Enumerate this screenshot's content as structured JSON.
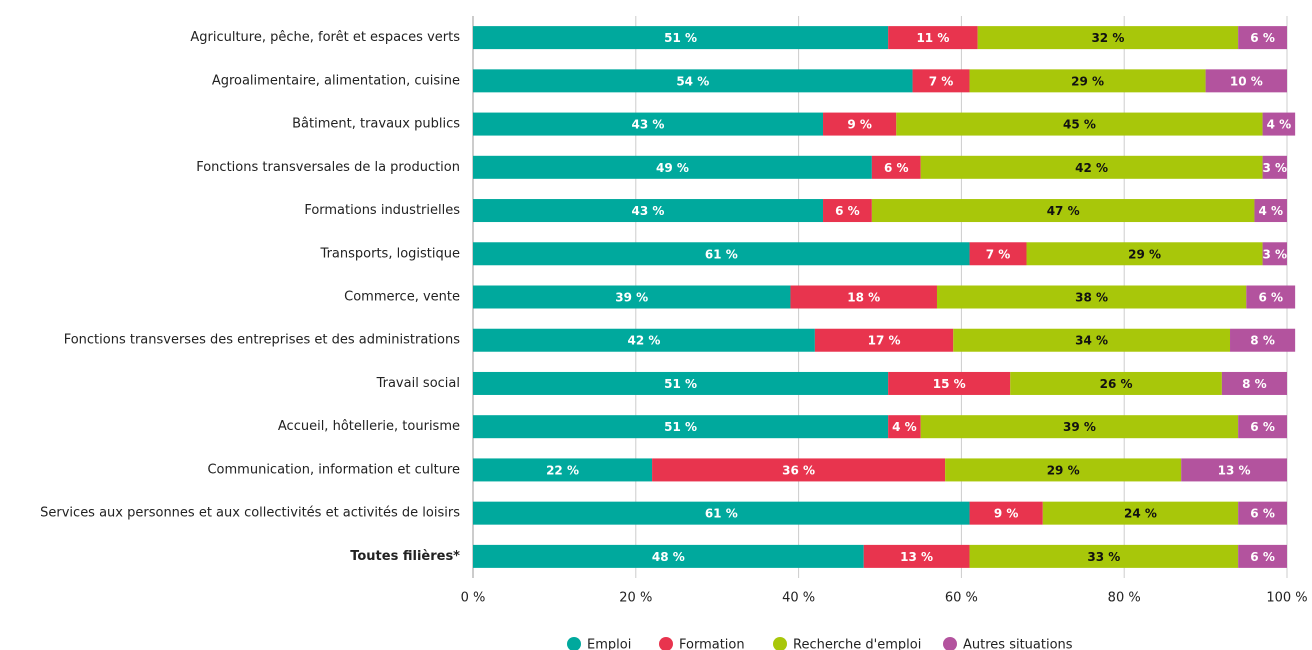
{
  "chart_data": {
    "type": "stacked-barh",
    "categories": [
      "Agriculture, pêche, forêt et espaces verts",
      "Agroalimentaire, alimentation, cuisine",
      "Bâtiment, travaux publics",
      "Fonctions transversales de la production",
      "Formations industrielles",
      "Transports, logistique",
      "Commerce, vente",
      "Fonctions transverses des entreprises et des administrations",
      "Travail social",
      "Accueil, hôtellerie, tourisme",
      "Communication, information et culture",
      "Services aux personnes et aux collectivités et activités de loisirs",
      "Toutes filières*"
    ],
    "series": [
      {
        "name": "Emploi",
        "color": "#00a99d",
        "values": [
          51,
          54,
          43,
          49,
          43,
          61,
          39,
          42,
          51,
          51,
          22,
          61,
          48
        ],
        "value_labels": [
          "51 %",
          "54 %",
          "43 %",
          "49 %",
          "43 %",
          "61 %",
          "39 %",
          "42 %",
          "51 %",
          "51 %",
          "22 %",
          "61 %",
          "48 %"
        ]
      },
      {
        "name": "Formation",
        "color": "#e8344e",
        "values": [
          11,
          7,
          9,
          6,
          6,
          7,
          18,
          17,
          15,
          4,
          36,
          9,
          13
        ],
        "value_labels": [
          "11 %",
          "7 %",
          "9 %",
          "6 %",
          "6 %",
          "7 %",
          "18 %",
          "17 %",
          "15 %",
          "4 %",
          "36 %",
          "9 %",
          "13 %"
        ]
      },
      {
        "name": "Recherche d'emploi",
        "color": "#a8c70a",
        "values": [
          32,
          29,
          45,
          42,
          47,
          29,
          38,
          34,
          26,
          39,
          29,
          24,
          33
        ],
        "value_labels": [
          "32 %",
          "29 %",
          "45 %",
          "42 %",
          "47 %",
          "29 %",
          "38 %",
          "34 %",
          "26 %",
          "39 %",
          "29 %",
          "24 %",
          "33 %"
        ]
      },
      {
        "name": "Autres situations",
        "color": "#b3539e",
        "values": [
          6,
          10,
          4,
          3,
          4,
          3,
          6,
          8,
          8,
          6,
          13,
          6,
          6
        ],
        "value_labels": [
          "6 %",
          "10 %",
          "4 %",
          "3 %",
          "4 %",
          "3 %",
          "6 %",
          "8 %",
          "8 %",
          "6 %",
          "13 %",
          "6 %",
          "6 %"
        ]
      }
    ],
    "xlim": [
      0,
      100
    ],
    "xticks": [
      {
        "value": 0,
        "label": "0 %"
      },
      {
        "value": 20,
        "label": "20 %"
      },
      {
        "value": 40,
        "label": "40 %"
      },
      {
        "value": 60,
        "label": "60 %"
      },
      {
        "value": 80,
        "label": "80 %"
      },
      {
        "value": 100,
        "label": "100 %"
      }
    ],
    "grid": true,
    "legend": "bottom"
  }
}
